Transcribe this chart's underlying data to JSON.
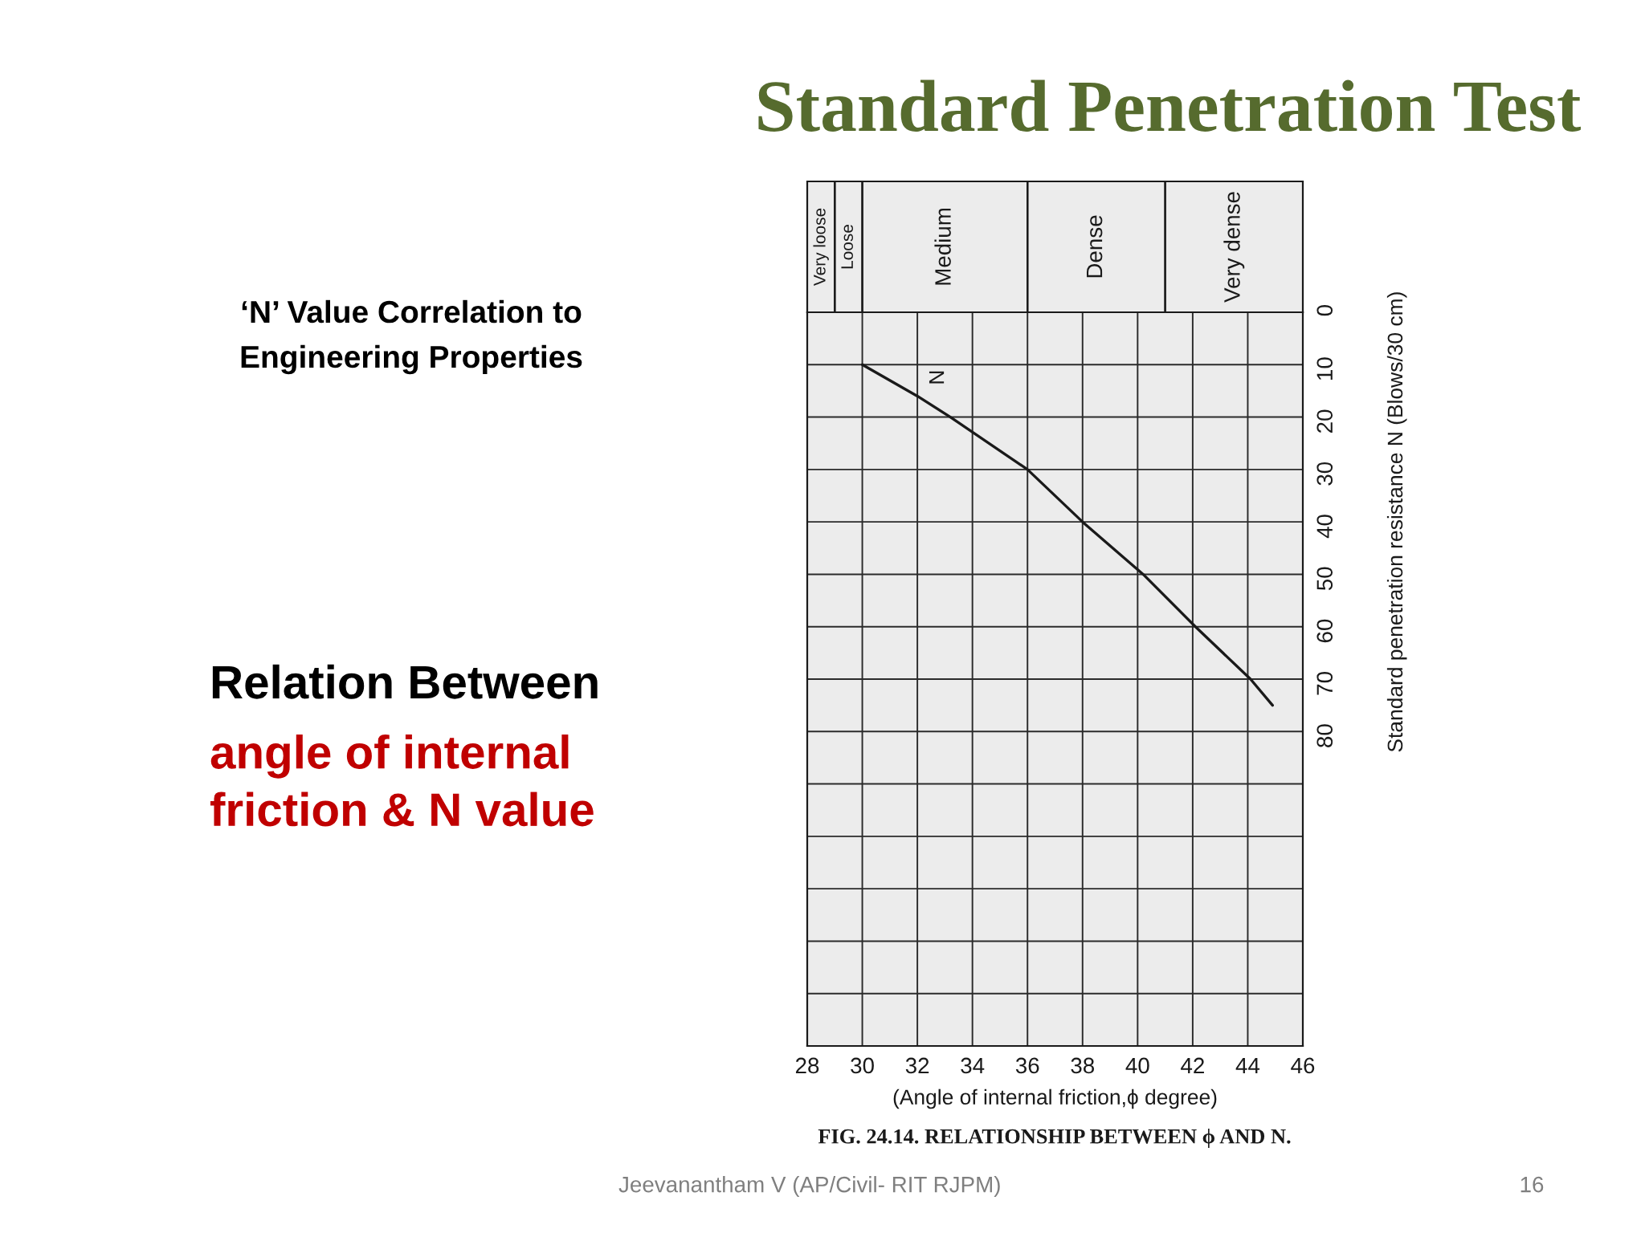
{
  "chart_data": {
    "type": "line",
    "title": "Standard Penetration Test",
    "subtitle": "‘N’ Value Correlation to Engineering Properties",
    "xlabel": "(Angle of internal friction,ϕ degree)",
    "ylabel": "Standard penetration resistance N (Blows/30 cm)",
    "x": [
      30,
      32,
      33.2,
      36,
      38,
      40.2,
      42.1,
      44.1,
      44.9
    ],
    "series": [
      {
        "name": "N",
        "color": "#1a1a1a",
        "values": [
          10,
          16,
          20,
          30,
          40,
          50,
          60,
          70,
          75
        ]
      }
    ],
    "xlim": [
      28,
      46
    ],
    "xticks": [
      28,
      30,
      32,
      34,
      36,
      38,
      40,
      42,
      44,
      46
    ],
    "ylim": [
      140,
      0
    ],
    "yticks": [
      0,
      10,
      20,
      30,
      40,
      50,
      60,
      70,
      80,
      {
        "value": 90,
        "label": null
      },
      {
        "value": 100,
        "label": null
      },
      {
        "value": 110,
        "label": null
      },
      {
        "value": 120,
        "label": null
      },
      {
        "value": 130,
        "label": null
      },
      {
        "value": 140,
        "label": null
      }
    ],
    "grid": true,
    "line_style": "solid",
    "bands": [
      {
        "axis": "x",
        "from": 28,
        "to": 29,
        "label": "Very loose",
        "color": "#ececec"
      },
      {
        "axis": "x",
        "from": 29,
        "to": 30,
        "label": "Loose",
        "color": "#ececec"
      },
      {
        "axis": "x",
        "from": 30,
        "to": 36,
        "label": "Medium",
        "color": "#ececec"
      },
      {
        "axis": "x",
        "from": 36,
        "to": 41,
        "label": "Dense",
        "color": "#ececec"
      },
      {
        "axis": "x",
        "from": 41,
        "to": 46,
        "label": "Very dense",
        "color": "#ececec"
      }
    ],
    "annotations": [
      "Relation Between",
      "angle of internal friction & N value",
      "FIG. 24.14. RELATIONSHIP BETWEEN ϕ AND N.",
      "Jeevanantham V (AP/Civil- RIT RJPM)",
      "16"
    ]
  }
}
